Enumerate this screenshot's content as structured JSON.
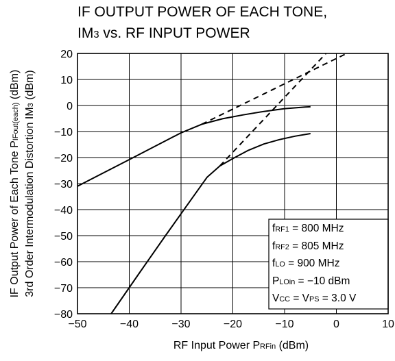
{
  "chart_data": {
    "type": "line",
    "title_lines": [
      "IF OUTPUT POWER OF EACH TONE,",
      "IM3 vs. RF INPUT POWER"
    ],
    "title_lines_parts": [
      [
        {
          "t": "IF OUTPUT POWER OF EACH TONE,",
          "sub": false
        }
      ],
      [
        {
          "t": "IM",
          "sub": false
        },
        {
          "t": "3",
          "sub": true
        },
        {
          "t": " vs. RF INPUT POWER",
          "sub": false
        }
      ]
    ],
    "xlabel_parts": [
      {
        "t": "RF Input Power   P",
        "sub": false
      },
      {
        "t": "RFin",
        "sub": true
      },
      {
        "t": " (dBm)",
        "sub": false
      }
    ],
    "ylabel_line1_parts": [
      {
        "t": "IF Output Power of Each Tone   P",
        "sub": false
      },
      {
        "t": "IFout(each)",
        "sub": true
      },
      {
        "t": " (dBm)",
        "sub": false
      }
    ],
    "ylabel_line2_parts": [
      {
        "t": "3rd Order Intermodulation Distortion   IM",
        "sub": false
      },
      {
        "t": "3",
        "sub": true
      },
      {
        "t": " (dBm)",
        "sub": false
      }
    ],
    "xlim": [
      -50,
      10
    ],
    "ylim": [
      -80,
      20
    ],
    "xticks": [
      "−50",
      "−40",
      "−30",
      "−20",
      "−10",
      "0",
      "10"
    ],
    "yticks": [
      "20",
      "10",
      "0",
      "−10",
      "−20",
      "−30",
      "−40",
      "−50",
      "−60",
      "−70",
      "−80"
    ],
    "grid": true,
    "series": [
      {
        "style": "solid",
        "x": [
          -50,
          -40,
          -30,
          -26,
          -22,
          -18,
          -14,
          -10,
          -6,
          -5
        ],
        "y": [
          -31,
          -20.8,
          -10.5,
          -7.2,
          -5.1,
          -3.6,
          -2.3,
          -1.2,
          -0.6,
          -0.5
        ]
      },
      {
        "style": "solid",
        "x": [
          -43.5,
          -38,
          -33,
          -28,
          -25,
          -22.5,
          -20,
          -17,
          -14,
          -11,
          -8,
          -5
        ],
        "y": [
          -80,
          -64.2,
          -50,
          -36,
          -27.6,
          -23.2,
          -20.4,
          -17.2,
          -14.8,
          -13.1,
          -11.8,
          -10.8
        ]
      },
      {
        "style": "dashed",
        "x": [
          -26,
          2
        ],
        "y": [
          -7.2,
          20
        ]
      },
      {
        "style": "dashed",
        "x": [
          -22.5,
          -2
        ],
        "y": [
          -23.2,
          20
        ]
      }
    ],
    "annotations": [
      [
        {
          "t": "f",
          "sub": false
        },
        {
          "t": "RF1",
          "sub": true
        },
        {
          "t": " = 800 MHz",
          "sub": false
        }
      ],
      [
        {
          "t": "f",
          "sub": false
        },
        {
          "t": "RF2",
          "sub": true
        },
        {
          "t": " = 805 MHz",
          "sub": false
        }
      ],
      [
        {
          "t": "f",
          "sub": false
        },
        {
          "t": "LO",
          "sub": true
        },
        {
          "t": " = 900 MHz",
          "sub": false
        }
      ],
      [
        {
          "t": "P",
          "sub": false
        },
        {
          "t": "LOin",
          "sub": true
        },
        {
          "t": " = −10 dBm",
          "sub": false
        }
      ],
      [
        {
          "t": "V",
          "sub": false
        },
        {
          "t": "CC",
          "sub": true
        },
        {
          "t": " = V",
          "sub": false
        },
        {
          "t": "PS",
          "sub": true
        },
        {
          "t": " = 3.0 V",
          "sub": false
        }
      ]
    ]
  }
}
